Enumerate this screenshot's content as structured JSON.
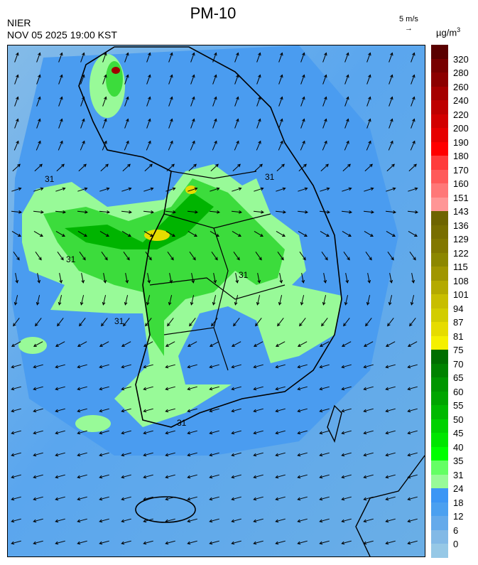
{
  "header": {
    "title": "PM-10",
    "agency": "NIER",
    "datetime": "NOV 05 2025 19:00 KST",
    "wind_scale": "5 m/s",
    "wind_arrow": "→",
    "unit": "µg/m",
    "unit_sup": "3"
  },
  "map": {
    "variable": "PM-10 concentration",
    "wind_vectors": true,
    "contour_labels": [
      "31",
      "31",
      "31",
      "31",
      "31",
      "31"
    ],
    "colors": {
      "sea_light": "#80b8e8",
      "sea": "#5aa6ee",
      "land_blue": "#4a9cf0",
      "green_light": "#98fa98",
      "green": "#3cf03c",
      "green_dark": "#00b400",
      "yellow": "#e6dc00",
      "red": "#a00000"
    }
  },
  "legend": {
    "labels": [
      "320",
      "280",
      "260",
      "240",
      "220",
      "200",
      "190",
      "180",
      "170",
      "160",
      "151",
      "143",
      "136",
      "129",
      "122",
      "115",
      "108",
      "101",
      "94",
      "87",
      "81",
      "75",
      "70",
      "65",
      "60",
      "55",
      "50",
      "45",
      "40",
      "35",
      "31",
      "24",
      "18",
      "12",
      "6",
      "0"
    ],
    "colors": [
      "#5a0000",
      "#780000",
      "#8c0000",
      "#a50000",
      "#be0000",
      "#d20000",
      "#e60000",
      "#ff0000",
      "#ff3c3c",
      "#ff5a5a",
      "#ff7878",
      "#ff9696",
      "#6e6400",
      "#786e00",
      "#827800",
      "#8c8700",
      "#a09600",
      "#b4aa00",
      "#c8be00",
      "#d2cd00",
      "#e6dc00",
      "#f5f000",
      "#006e00",
      "#008200",
      "#009600",
      "#00a500",
      "#00b900",
      "#00d200",
      "#00e600",
      "#00ff00",
      "#64ff64",
      "#98fa98",
      "#3c96f5",
      "#4ba0f0",
      "#64aaeb",
      "#82b9e6",
      "#96c8e6"
    ]
  }
}
